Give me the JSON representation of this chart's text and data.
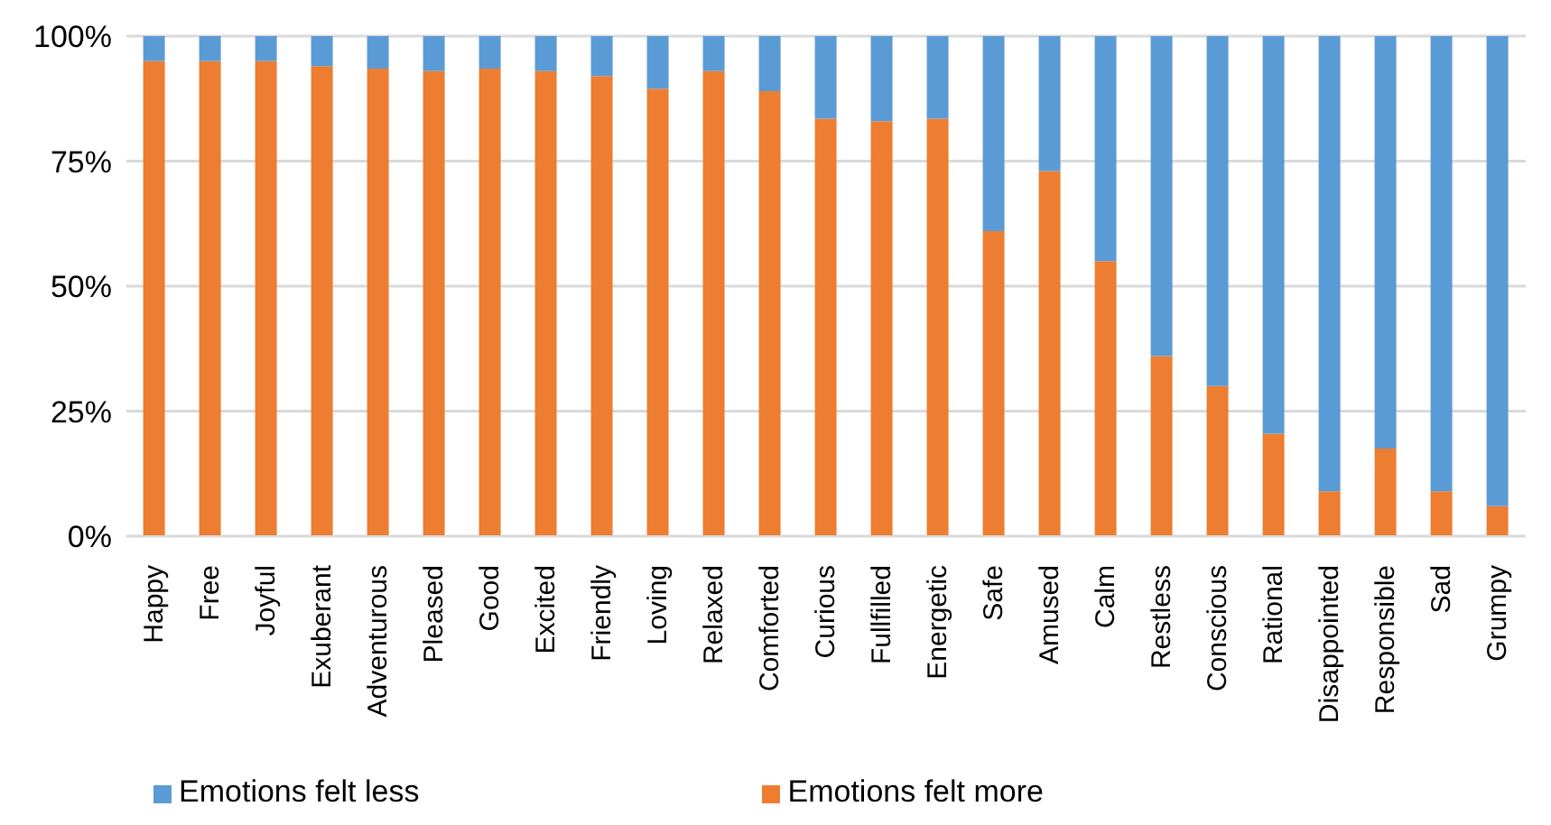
{
  "chart_data": {
    "type": "bar",
    "stacked": true,
    "categories": [
      "Happy",
      "Free",
      "Joyful",
      "Exuberant",
      "Adventurous",
      "Pleased",
      "Good",
      "Excited",
      "Friendly",
      "Loving",
      "Relaxed",
      "Comforted",
      "Curious",
      "Fullfilled",
      "Energetic",
      "Safe",
      "Amused",
      "Calm",
      "Restless",
      "Conscious",
      "Rational",
      "Disappointed",
      "Responsible",
      "Sad",
      "Grumpy"
    ],
    "series": [
      {
        "name": "Emotions felt more",
        "color": "#ed7d31",
        "values": [
          95,
          95,
          95,
          94,
          93.5,
          93,
          93.5,
          93,
          92,
          89.5,
          93,
          89,
          83.5,
          83,
          83.5,
          61,
          73,
          55,
          36,
          30,
          20.5,
          9,
          17.5,
          9,
          6
        ]
      },
      {
        "name": "Emotions felt less",
        "color": "#5b9bd5",
        "values": [
          5,
          5,
          5,
          6,
          6.5,
          7,
          6.5,
          7,
          8,
          10.5,
          7,
          11,
          16.5,
          17,
          16.5,
          39,
          27,
          45,
          64,
          70,
          79.5,
          91,
          82.5,
          91,
          94
        ]
      }
    ],
    "ylim": [
      0,
      100
    ],
    "yticks": [
      {
        "value": 0,
        "label": "0%"
      },
      {
        "value": 25,
        "label": "25%"
      },
      {
        "value": 50,
        "label": "50%"
      },
      {
        "value": 75,
        "label": "75%"
      },
      {
        "value": 100,
        "label": "100%"
      }
    ],
    "grid": "y",
    "legend": "bottom"
  }
}
